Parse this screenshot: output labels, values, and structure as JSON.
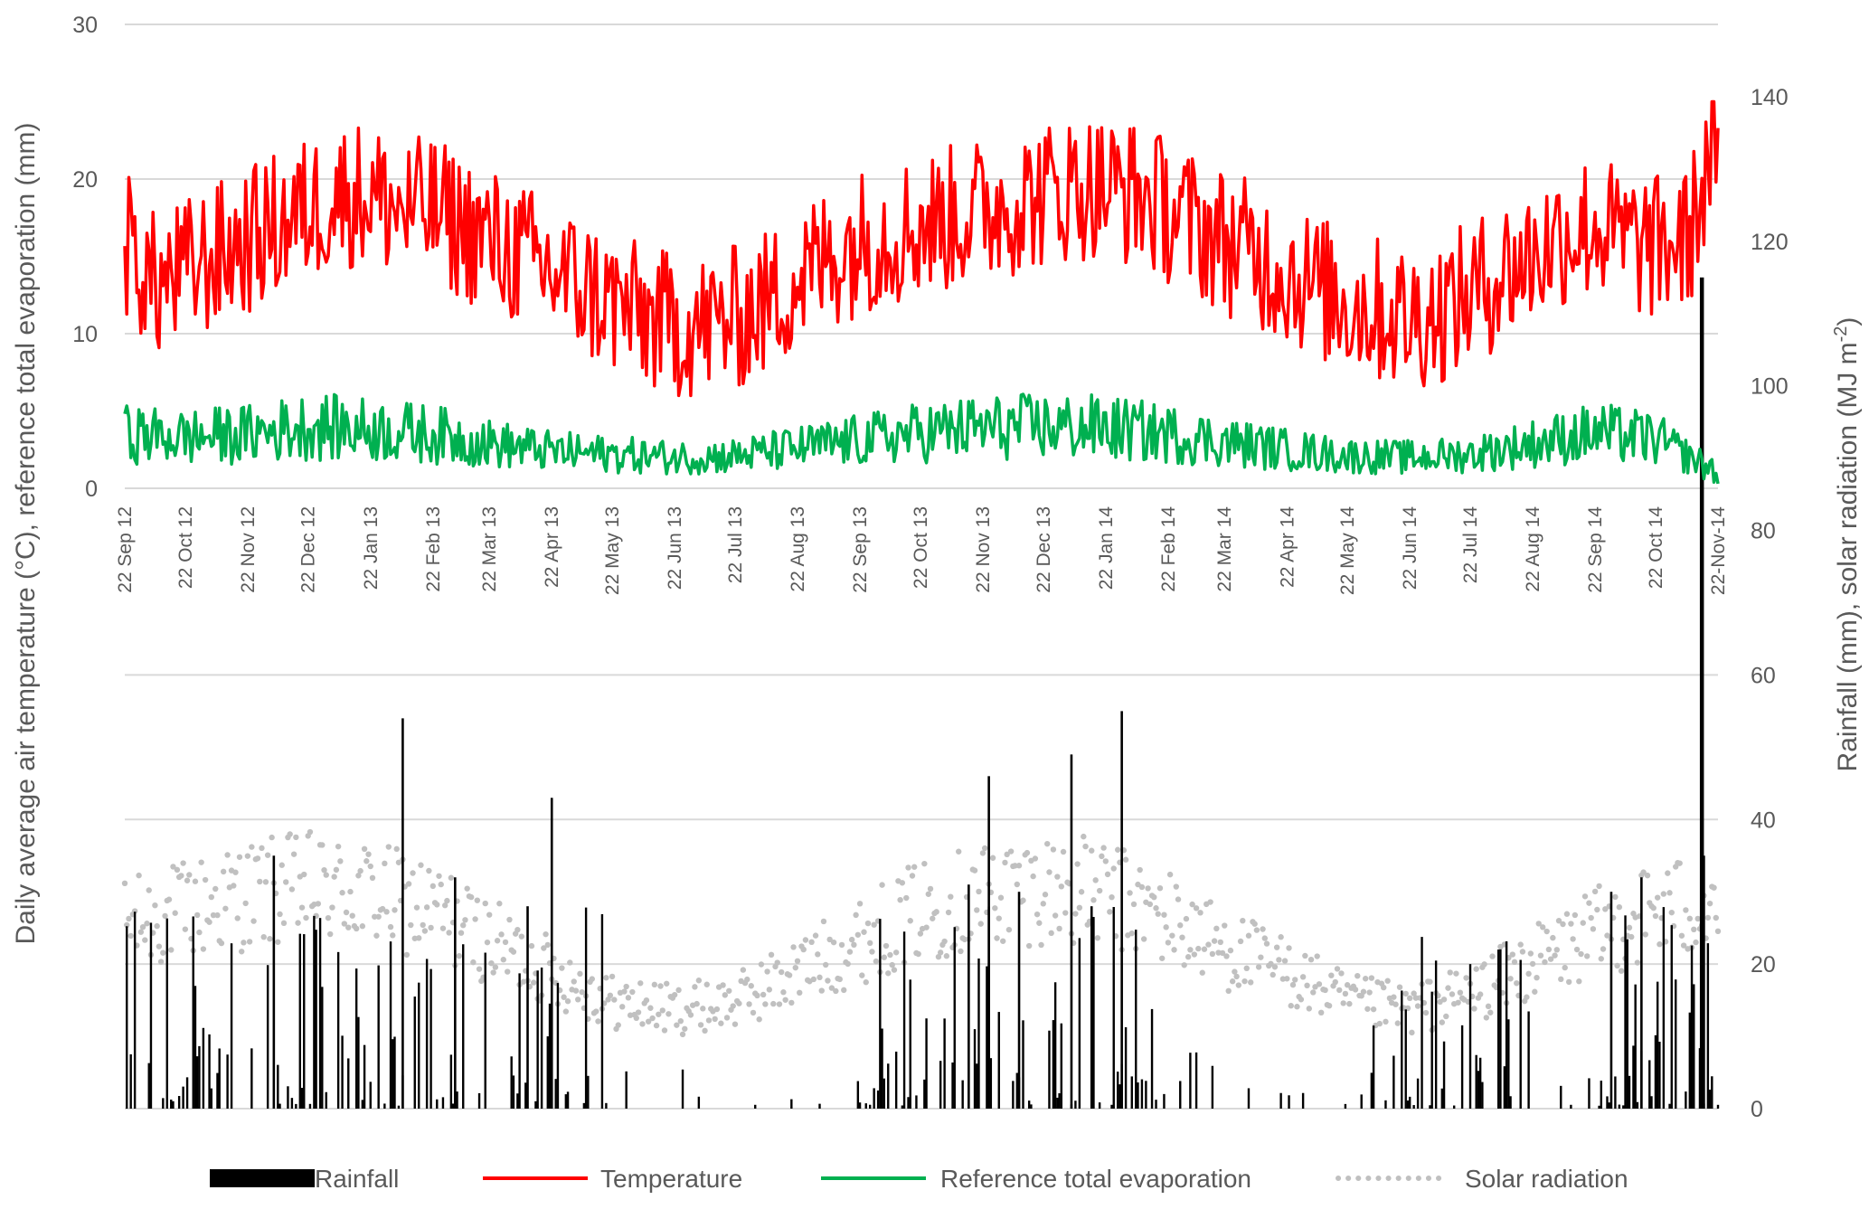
{
  "chart_data": {
    "type": "line",
    "x_type": "date",
    "x_start": "2012-09-22",
    "x_end": "2014-11-22",
    "x_tick_labels": [
      "22 Sep 12",
      "22 Oct 12",
      "22 Nov 12",
      "22 Dec 12",
      "22 Jan 13",
      "22 Feb 13",
      "22 Mar 13",
      "22 Apr 13",
      "22 May 13",
      "22 Jun 13",
      "22 Jul 13",
      "22 Aug 13",
      "22 Sep 13",
      "22 Oct 13",
      "22 Nov 13",
      "22 Dec 13",
      "22 Jan 14",
      "22 Feb 14",
      "22 Mar 14",
      "22 Apr 14",
      "22 May 14",
      "22 Jun 14",
      "22 Jul 14",
      "22 Aug 14",
      "22 Sep 14",
      "22 Oct 14",
      "22-Nov-14"
    ],
    "y_left": {
      "label": "Daily average air temperature (°C), reference total evaporation (mm)",
      "ticks": [
        "0",
        "10",
        "20",
        "30"
      ],
      "range": [
        0,
        30
      ]
    },
    "y_right": {
      "label": "Rainfall (mm), solar radiation (MJ m",
      "label_sup": "-2",
      "label_end": ")",
      "ticks": [
        "0",
        "20",
        "40",
        "60",
        "80",
        "100",
        "120",
        "140"
      ],
      "range": [
        0,
        140
      ]
    },
    "grid": true,
    "legend_position": "bottom",
    "series": [
      {
        "name": "Temperature",
        "axis": "left",
        "style": "line",
        "color": "#ff0000",
        "points": [
          [
            "2012-09-22",
            16
          ],
          [
            "2012-10-07",
            13
          ],
          [
            "2012-10-22",
            14
          ],
          [
            "2012-11-06",
            15
          ],
          [
            "2012-11-22",
            16
          ],
          [
            "2012-12-07",
            17
          ],
          [
            "2012-12-22",
            18
          ],
          [
            "2013-01-06",
            19
          ],
          [
            "2013-01-22",
            19
          ],
          [
            "2013-02-06",
            18
          ],
          [
            "2013-02-22",
            18
          ],
          [
            "2013-03-07",
            17
          ],
          [
            "2013-03-22",
            16
          ],
          [
            "2013-04-07",
            15
          ],
          [
            "2013-04-22",
            14
          ],
          [
            "2013-05-07",
            13
          ],
          [
            "2013-05-22",
            12
          ],
          [
            "2013-06-07",
            11
          ],
          [
            "2013-06-22",
            10.5
          ],
          [
            "2013-07-07",
            10.5
          ],
          [
            "2013-07-22",
            11
          ],
          [
            "2013-08-07",
            12
          ],
          [
            "2013-08-22",
            13.5
          ],
          [
            "2013-09-07",
            15
          ],
          [
            "2013-09-22",
            16
          ],
          [
            "2013-10-07",
            16.5
          ],
          [
            "2013-10-22",
            17
          ],
          [
            "2013-11-07",
            17.5
          ],
          [
            "2013-11-22",
            18
          ],
          [
            "2013-12-07",
            18.5
          ],
          [
            "2013-12-22",
            19
          ],
          [
            "2014-01-07",
            19.5
          ],
          [
            "2014-01-22",
            19.5
          ],
          [
            "2014-02-07",
            19
          ],
          [
            "2014-02-22",
            18
          ],
          [
            "2014-03-07",
            17
          ],
          [
            "2014-03-22",
            16
          ],
          [
            "2014-04-07",
            15
          ],
          [
            "2014-04-22",
            14
          ],
          [
            "2014-05-07",
            13
          ],
          [
            "2014-05-22",
            12
          ],
          [
            "2014-06-07",
            11.5
          ],
          [
            "2014-06-22",
            11
          ],
          [
            "2014-07-07",
            11.5
          ],
          [
            "2014-07-22",
            12.5
          ],
          [
            "2014-08-07",
            14
          ],
          [
            "2014-08-22",
            15
          ],
          [
            "2014-09-07",
            16.5
          ],
          [
            "2014-09-22",
            17
          ],
          [
            "2014-10-07",
            16
          ],
          [
            "2014-10-22",
            15.5
          ],
          [
            "2014-11-07",
            16
          ],
          [
            "2014-11-22",
            23
          ]
        ],
        "range": [
          6,
          25
        ]
      },
      {
        "name": "Reference total evaporation",
        "axis": "left",
        "style": "line",
        "color": "#00b050",
        "points": [
          [
            "2012-09-22",
            3.5
          ],
          [
            "2012-10-22",
            3.3
          ],
          [
            "2012-11-22",
            3.5
          ],
          [
            "2012-12-22",
            4
          ],
          [
            "2013-01-22",
            3.8
          ],
          [
            "2013-02-22",
            3.5
          ],
          [
            "2013-03-22",
            2.9
          ],
          [
            "2013-04-22",
            2.4
          ],
          [
            "2013-05-22",
            2.2
          ],
          [
            "2013-06-22",
            2
          ],
          [
            "2013-07-22",
            2.1
          ],
          [
            "2013-08-22",
            2.6
          ],
          [
            "2013-09-22",
            3.1
          ],
          [
            "2013-10-22",
            3.6
          ],
          [
            "2013-11-22",
            3.9
          ],
          [
            "2013-12-22",
            4
          ],
          [
            "2014-01-22",
            3.9
          ],
          [
            "2014-02-22",
            3.5
          ],
          [
            "2014-03-22",
            3
          ],
          [
            "2014-04-22",
            2.5
          ],
          [
            "2014-05-22",
            2.1
          ],
          [
            "2014-06-22",
            2
          ],
          [
            "2014-07-22",
            2.2
          ],
          [
            "2014-08-22",
            2.9
          ],
          [
            "2014-09-22",
            3.6
          ],
          [
            "2014-10-22",
            3.2
          ],
          [
            "2014-11-22",
            1
          ]
        ],
        "range": [
          0,
          6.7
        ]
      },
      {
        "name": "Solar radiation",
        "axis": "right",
        "style": "dotted",
        "color": "#c0c0c0",
        "points": [
          [
            "2012-09-22",
            24
          ],
          [
            "2012-10-22",
            26
          ],
          [
            "2012-11-22",
            28
          ],
          [
            "2012-12-22",
            29
          ],
          [
            "2013-01-22",
            28
          ],
          [
            "2013-02-22",
            26
          ],
          [
            "2013-03-22",
            22
          ],
          [
            "2013-04-22",
            18
          ],
          [
            "2013-05-22",
            14
          ],
          [
            "2013-06-22",
            13
          ],
          [
            "2013-07-22",
            14
          ],
          [
            "2013-08-22",
            18
          ],
          [
            "2013-09-22",
            22
          ],
          [
            "2013-10-22",
            26
          ],
          [
            "2013-11-22",
            28
          ],
          [
            "2013-12-22",
            29
          ],
          [
            "2014-01-22",
            28
          ],
          [
            "2014-02-22",
            25
          ],
          [
            "2014-03-22",
            21
          ],
          [
            "2014-04-22",
            18
          ],
          [
            "2014-05-22",
            14
          ],
          [
            "2014-06-22",
            13
          ],
          [
            "2014-07-22",
            15
          ],
          [
            "2014-08-22",
            19
          ],
          [
            "2014-09-22",
            23
          ],
          [
            "2014-10-22",
            26
          ],
          [
            "2014-11-22",
            27
          ]
        ],
        "range": [
          5,
          39
        ]
      },
      {
        "name": "Rainfall",
        "axis": "right",
        "style": "bar",
        "color": "#000000",
        "points": [
          [
            "2013-02-07",
            54
          ],
          [
            "2013-04-22",
            43
          ],
          [
            "2013-11-25",
            46
          ],
          [
            "2014-01-05",
            49
          ],
          [
            "2014-01-30",
            55
          ],
          [
            "2014-11-14",
            115
          ],
          [
            "2014-11-15",
            35
          ],
          [
            "2012-12-05",
            35
          ],
          [
            "2013-03-05",
            32
          ],
          [
            "2013-04-10",
            28
          ],
          [
            "2013-11-15",
            31
          ],
          [
            "2013-12-10",
            30
          ],
          [
            "2014-01-15",
            28
          ],
          [
            "2014-10-15",
            32
          ],
          [
            "2014-09-30",
            30
          ]
        ]
      }
    ]
  },
  "legend": {
    "items": [
      {
        "label": "Rainfall",
        "color": "#000000",
        "style": "bar"
      },
      {
        "label": "Temperature",
        "color": "#ff0000",
        "style": "line"
      },
      {
        "label": "Reference total evaporation",
        "color": "#00b050",
        "style": "line"
      },
      {
        "label": "Solar radiation",
        "color": "#c0c0c0",
        "style": "dotted"
      }
    ]
  }
}
